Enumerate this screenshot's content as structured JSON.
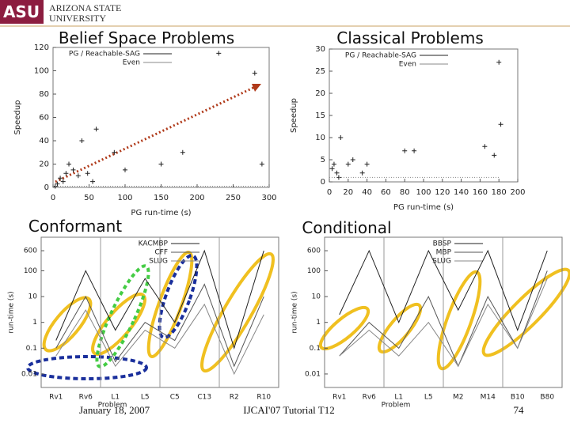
{
  "header": {
    "logo": "ASU",
    "university_line1": "Arizona State",
    "university_line2": "University"
  },
  "chart_data": [
    {
      "type": "scatter",
      "title": "Belief Space Problems",
      "x_label": "PG run-time (s)",
      "y_label": "Speedup",
      "xlim": [
        0,
        300
      ],
      "ylim": [
        0,
        120
      ],
      "xticks": [
        0,
        50,
        100,
        150,
        200,
        250,
        300
      ],
      "yticks": [
        0,
        20,
        40,
        60,
        80,
        100,
        120
      ],
      "series": [
        {
          "name": "PG / Reachable-SAG",
          "type": "scatter",
          "color": "#222222",
          "x": [
            3,
            6,
            10,
            14,
            18,
            22,
            28,
            35,
            40,
            48,
            55,
            60,
            85,
            100,
            150,
            180,
            230,
            280,
            290
          ],
          "values": [
            1,
            3,
            8,
            5,
            12,
            20,
            15,
            10,
            40,
            12,
            5,
            50,
            30,
            15,
            20,
            30,
            115,
            98,
            20
          ]
        },
        {
          "name": "Even",
          "type": "line",
          "color": "#888888",
          "x": [
            0,
            300
          ],
          "values": [
            1,
            1
          ]
        }
      ]
    },
    {
      "type": "scatter",
      "title": "Classical Problems",
      "x_label": "PG run-time (s)",
      "y_label": "Speedup",
      "xlim": [
        0,
        200
      ],
      "ylim": [
        0,
        30
      ],
      "xticks": [
        0,
        20,
        40,
        60,
        80,
        100,
        120,
        140,
        160,
        180,
        200
      ],
      "yticks": [
        0,
        5,
        10,
        15,
        20,
        25,
        30
      ],
      "series": [
        {
          "name": "PG / Reachable-SAG",
          "type": "scatter",
          "color": "#222222",
          "x": [
            3,
            5,
            8,
            10,
            12,
            20,
            25,
            35,
            40,
            80,
            90,
            165,
            175,
            180,
            182
          ],
          "values": [
            3,
            4,
            2,
            1,
            10,
            4,
            5,
            2,
            4,
            7,
            7,
            8,
            6,
            27,
            13
          ]
        },
        {
          "name": "Even",
          "type": "line",
          "color": "#888888",
          "x": [
            0,
            180
          ],
          "values": [
            1,
            1
          ]
        }
      ]
    },
    {
      "type": "line",
      "title": "Conformant",
      "x_label": "Problem",
      "y_label": "run-time (s)",
      "ylog": true,
      "ylim": [
        0.003,
        2000
      ],
      "yticks": [
        0.01,
        0.1,
        1,
        10,
        100,
        600
      ],
      "categories": [
        "Rv1",
        "Rv6",
        "L1",
        "L5",
        "C5",
        "C13",
        "R2",
        "R10"
      ],
      "series": [
        {
          "name": "KACMBP",
          "color": "#222222",
          "values": [
            0.2,
            100,
            0.5,
            50,
            1,
            600,
            0.1,
            600
          ]
        },
        {
          "name": "CFF",
          "color": "#555555",
          "values": [
            0.1,
            10,
            0.03,
            1,
            0.2,
            30,
            0.02,
            10
          ]
        },
        {
          "name": "SLUG",
          "color": "#888888",
          "values": [
            0.05,
            3,
            0.02,
            0.5,
            0.1,
            5,
            0.01,
            2
          ]
        }
      ]
    },
    {
      "type": "line",
      "title": "Conditional",
      "x_label": "Problem",
      "y_label": "run-time (s)",
      "ylog": true,
      "ylim": [
        0.003,
        2000
      ],
      "yticks": [
        0.01,
        0.1,
        1,
        10,
        100,
        600
      ],
      "categories": [
        "Rv1",
        "Rv6",
        "L1",
        "L5",
        "M2",
        "M14",
        "B10",
        "B80"
      ],
      "series": [
        {
          "name": "BBSP",
          "color": "#222222",
          "values": [
            2,
            600,
            1,
            600,
            3,
            600,
            0.5,
            600
          ]
        },
        {
          "name": "MBP",
          "color": "#555555",
          "values": [
            0.05,
            1,
            0.1,
            10,
            0.02,
            10,
            0.1,
            100
          ]
        },
        {
          "name": "SLUG",
          "color": "#888888",
          "values": [
            0.05,
            0.5,
            0.05,
            1,
            0.02,
            5,
            0.1,
            50
          ]
        }
      ]
    }
  ],
  "footer": {
    "date": "January 18, 2007",
    "event": "IJCAI'07 Tutorial T12",
    "page": "74"
  }
}
